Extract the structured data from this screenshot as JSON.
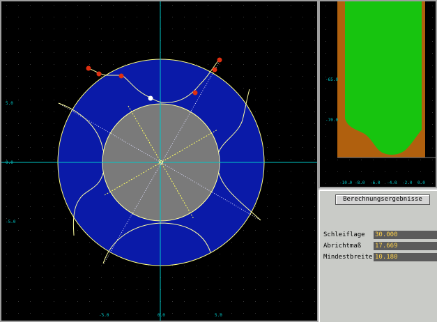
{
  "colors": {
    "canvas_bg": "#000000",
    "grid_dot": "#3a3a3a",
    "axis": "#00c8c8",
    "tick_label": "#00c8c8",
    "wheel": "#0a1aa8",
    "wheel_outline": "#ffff80",
    "core": "#7a7a7a",
    "core_outline": "#ffffa0",
    "curve": "#ffffa0",
    "point": "#e03010",
    "point_highlight": "#ffffff",
    "profile_brown": "#b0600e",
    "profile_green": "#17c40f",
    "value_text": "#ffd24a",
    "value_bg": "#5b5b5b"
  },
  "main_view": {
    "x_ticks": [
      "-5.0",
      "0.0",
      "5.0"
    ],
    "y_ticks": [
      "5.0",
      "0.0",
      "-5.0"
    ]
  },
  "profile_view": {
    "y_ticks": [
      "-65.0",
      "-70.0"
    ],
    "x_ticks": [
      "-10.0",
      "-8.0",
      "-6.0",
      "-4.0",
      "-2.0",
      "0.0"
    ]
  },
  "results": {
    "title": "Berechnungsergebnisse",
    "rows": [
      {
        "label": "Schleiflage",
        "value": "30.000"
      },
      {
        "label": "Abrichtmaß",
        "value": "17.669"
      },
      {
        "label": "Mindestbreite",
        "value": "10.180"
      }
    ]
  }
}
